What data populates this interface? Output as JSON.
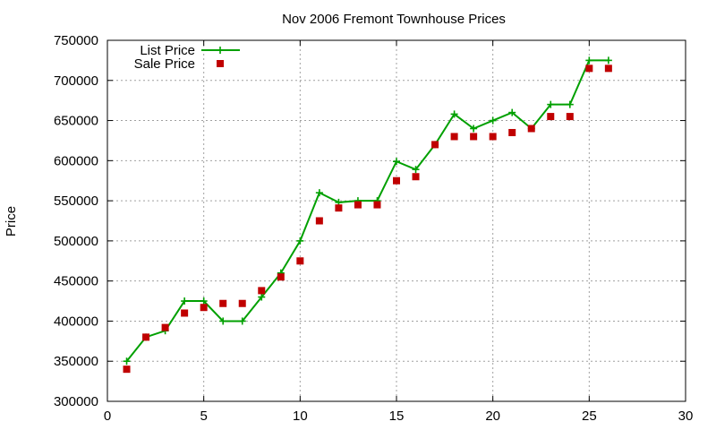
{
  "chart_data": {
    "type": "line",
    "title": "Nov 2006 Fremont Townhouse Prices",
    "xlabel": "",
    "ylabel": "Price",
    "xlim": [
      0,
      30
    ],
    "ylim": [
      300000,
      750000
    ],
    "xticks": [
      0,
      5,
      10,
      15,
      20,
      25,
      30
    ],
    "yticks": [
      300000,
      350000,
      400000,
      450000,
      500000,
      550000,
      600000,
      650000,
      700000,
      750000
    ],
    "grid": true,
    "legend_position": "top-left",
    "series": [
      {
        "name": "List Price",
        "style": "line+cross",
        "color": "#00a000",
        "x": [
          1,
          2,
          3,
          4,
          5,
          6,
          7,
          8,
          9,
          10,
          11,
          12,
          13,
          14,
          15,
          16,
          17,
          18,
          19,
          20,
          21,
          22,
          23,
          24,
          25,
          26
        ],
        "y": [
          350000,
          380000,
          388000,
          425000,
          425000,
          400000,
          400000,
          430000,
          460000,
          500000,
          560000,
          548000,
          550000,
          550000,
          599000,
          589000,
          620000,
          658000,
          640000,
          650000,
          660000,
          640000,
          670000,
          670000,
          725000,
          725000
        ]
      },
      {
        "name": "Sale Price",
        "style": "square-points",
        "color": "#c00000",
        "x": [
          1,
          2,
          3,
          4,
          5,
          6,
          7,
          8,
          9,
          10,
          11,
          12,
          13,
          14,
          15,
          16,
          17,
          18,
          19,
          20,
          21,
          22,
          23,
          24,
          25,
          26
        ],
        "y": [
          340000,
          380000,
          392000,
          410000,
          417000,
          422000,
          422000,
          438000,
          455000,
          475000,
          525000,
          541000,
          545000,
          545000,
          575000,
          580000,
          620000,
          630000,
          630000,
          630000,
          635000,
          640000,
          655000,
          655000,
          715000,
          715000
        ]
      }
    ]
  }
}
